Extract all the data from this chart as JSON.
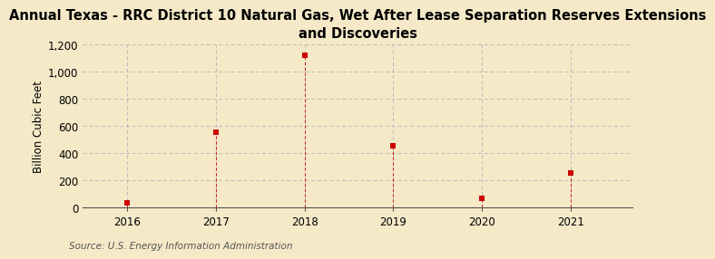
{
  "title": "Annual Texas - RRC District 10 Natural Gas, Wet After Lease Separation Reserves Extensions\nand Discoveries",
  "ylabel": "Billion Cubic Feet",
  "source": "Source: U.S. Energy Information Administration",
  "years": [
    2016,
    2017,
    2018,
    2019,
    2020,
    2021
  ],
  "values": [
    35,
    555,
    1120,
    455,
    65,
    255
  ],
  "marker_color": "#cc0000",
  "marker": "s",
  "marker_size": 4,
  "background_color": "#f5e9c8",
  "grid_color": "#bbbbbb",
  "ylim": [
    0,
    1200
  ],
  "yticks": [
    0,
    200,
    400,
    600,
    800,
    1000,
    1200
  ],
  "xlim": [
    2015.5,
    2021.7
  ],
  "xticks": [
    2016,
    2017,
    2018,
    2019,
    2020,
    2021
  ],
  "title_fontsize": 10.5,
  "axis_label_fontsize": 8.5,
  "tick_fontsize": 8.5,
  "source_fontsize": 7.5
}
